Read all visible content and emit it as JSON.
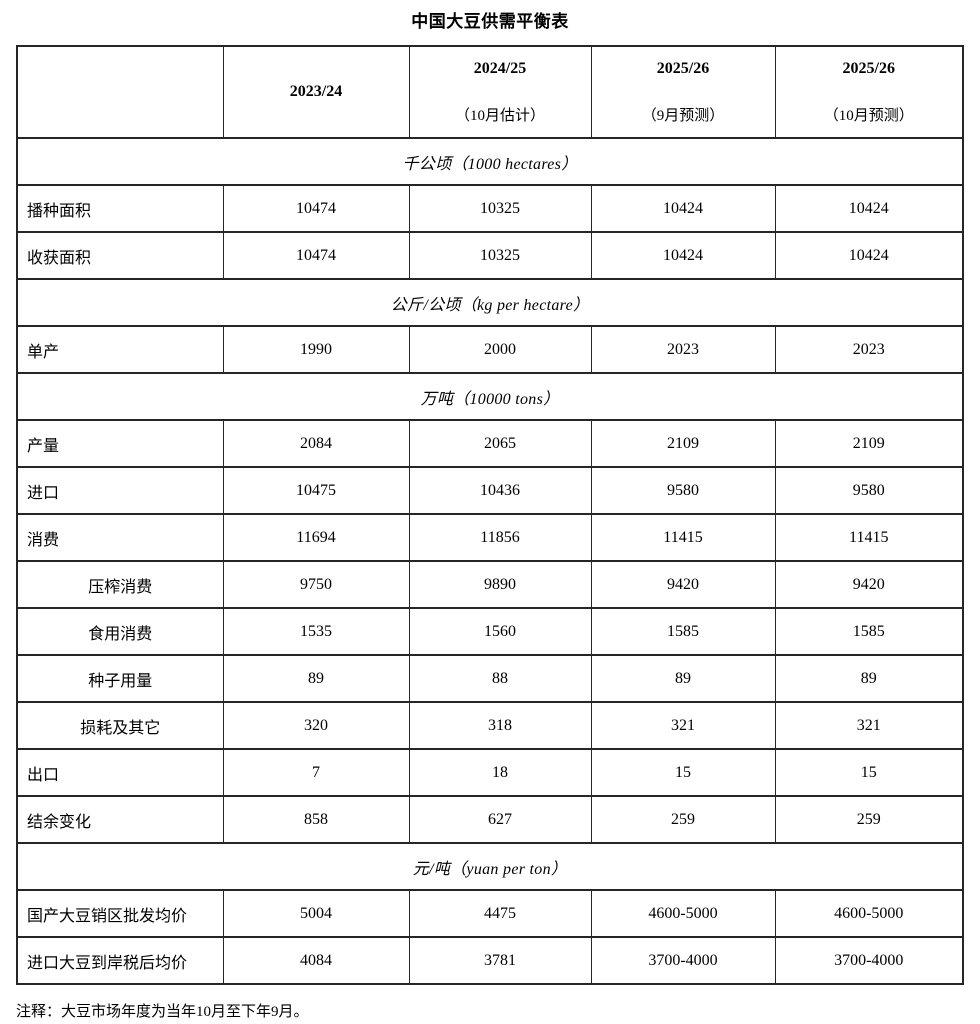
{
  "title": "中国大豆供需平衡表",
  "table": {
    "columns": [
      {
        "line1": "",
        "line2": ""
      },
      {
        "line1": "2023/24",
        "line2": ""
      },
      {
        "line1": "2024/25",
        "line2": "（10月估计）"
      },
      {
        "line1": "2025/26",
        "line2": "（9月预测）"
      },
      {
        "line1": "2025/26",
        "line2": "（10月预测）"
      }
    ],
    "sections": [
      {
        "unit": "千公顷（1000 hectares）",
        "rows": [
          {
            "label": "播种面积",
            "indent": false,
            "values": [
              "10474",
              "10325",
              "10424",
              "10424"
            ]
          },
          {
            "label": "收获面积",
            "indent": false,
            "values": [
              "10474",
              "10325",
              "10424",
              "10424"
            ]
          }
        ]
      },
      {
        "unit": "公斤/公顷（kg per hectare）",
        "rows": [
          {
            "label": "单产",
            "indent": false,
            "values": [
              "1990",
              "2000",
              "2023",
              "2023"
            ]
          }
        ]
      },
      {
        "unit": "万吨（10000 tons）",
        "rows": [
          {
            "label": "产量",
            "indent": false,
            "values": [
              "2084",
              "2065",
              "2109",
              "2109"
            ]
          },
          {
            "label": "进口",
            "indent": false,
            "values": [
              "10475",
              "10436",
              "9580",
              "9580"
            ]
          },
          {
            "label": "消费",
            "indent": false,
            "values": [
              "11694",
              "11856",
              "11415",
              "11415"
            ]
          },
          {
            "label": "压榨消费",
            "indent": true,
            "values": [
              "9750",
              "9890",
              "9420",
              "9420"
            ]
          },
          {
            "label": "食用消费",
            "indent": true,
            "values": [
              "1535",
              "1560",
              "1585",
              "1585"
            ]
          },
          {
            "label": "种子用量",
            "indent": true,
            "values": [
              "89",
              "88",
              "89",
              "89"
            ]
          },
          {
            "label": "损耗及其它",
            "indent": true,
            "values": [
              "320",
              "318",
              "321",
              "321"
            ]
          },
          {
            "label": "出口",
            "indent": false,
            "values": [
              "7",
              "18",
              "15",
              "15"
            ]
          },
          {
            "label": "结余变化",
            "indent": false,
            "values": [
              "858",
              "627",
              "259",
              "259"
            ]
          }
        ]
      },
      {
        "unit": "元/吨（yuan per ton）",
        "rows": [
          {
            "label": "国产大豆销区批发均价",
            "indent": false,
            "values": [
              "5004",
              "4475",
              "4600-5000",
              "4600-5000"
            ]
          },
          {
            "label": "进口大豆到岸税后均价",
            "indent": false,
            "values": [
              "4084",
              "3781",
              "3700-4000",
              "3700-4000"
            ]
          }
        ]
      }
    ]
  },
  "footnote": "注释：大豆市场年度为当年10月至下年9月。"
}
